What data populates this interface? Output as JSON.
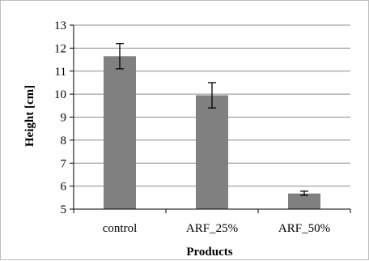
{
  "chart_data": {
    "type": "bar",
    "title": "",
    "xlabel": "Products",
    "ylabel": "Height [cm]",
    "categories": [
      "control",
      "ARF_25%",
      "ARF_50%"
    ],
    "values": [
      11.65,
      9.95,
      5.68
    ],
    "error_low": [
      11.1,
      9.4,
      5.6
    ],
    "error_high": [
      12.2,
      10.5,
      5.78
    ],
    "ylim": [
      5,
      13
    ],
    "yticks": [
      5,
      6,
      7,
      8,
      9,
      10,
      11,
      12,
      13
    ],
    "grid": true,
    "legend": "none",
    "bar_color": "#808080",
    "grid_color": "#8c8c8c"
  }
}
